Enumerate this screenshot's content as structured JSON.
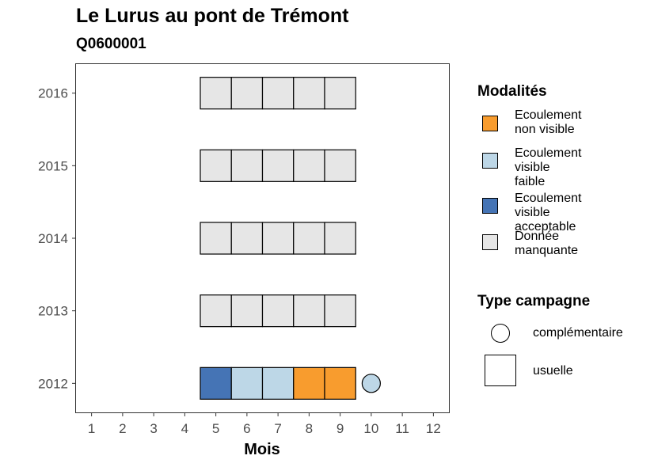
{
  "chart_data": {
    "type": "heatmap",
    "title": "Le Lurus au pont de Trémont",
    "subtitle": "Q0600001",
    "xlabel": "Mois",
    "ylabel": "",
    "x_ticks": [
      "1",
      "2",
      "3",
      "4",
      "5",
      "6",
      "7",
      "8",
      "9",
      "10",
      "11",
      "12"
    ],
    "y_ticks": [
      "2016",
      "2015",
      "2014",
      "2013",
      "2012"
    ],
    "xlim": [
      0.5,
      12.5
    ],
    "ylim": [
      2011.6,
      2016.4
    ],
    "grid": false,
    "legend_position": "right",
    "colors": {
      "Ecoulement non visible": "#F89C2E",
      "Ecoulement visible faible": "#BDD7E7",
      "Ecoulement visible acceptable": "#4574B5",
      "Donnée manquante": "#E6E6E6"
    },
    "points": [
      {
        "year": 2016,
        "month": 5,
        "modalite": "Donnée manquante",
        "campagne": "usuelle"
      },
      {
        "year": 2016,
        "month": 6,
        "modalite": "Donnée manquante",
        "campagne": "usuelle"
      },
      {
        "year": 2016,
        "month": 7,
        "modalite": "Donnée manquante",
        "campagne": "usuelle"
      },
      {
        "year": 2016,
        "month": 8,
        "modalite": "Donnée manquante",
        "campagne": "usuelle"
      },
      {
        "year": 2016,
        "month": 9,
        "modalite": "Donnée manquante",
        "campagne": "usuelle"
      },
      {
        "year": 2015,
        "month": 5,
        "modalite": "Donnée manquante",
        "campagne": "usuelle"
      },
      {
        "year": 2015,
        "month": 6,
        "modalite": "Donnée manquante",
        "campagne": "usuelle"
      },
      {
        "year": 2015,
        "month": 7,
        "modalite": "Donnée manquante",
        "campagne": "usuelle"
      },
      {
        "year": 2015,
        "month": 8,
        "modalite": "Donnée manquante",
        "campagne": "usuelle"
      },
      {
        "year": 2015,
        "month": 9,
        "modalite": "Donnée manquante",
        "campagne": "usuelle"
      },
      {
        "year": 2014,
        "month": 5,
        "modalite": "Donnée manquante",
        "campagne": "usuelle"
      },
      {
        "year": 2014,
        "month": 6,
        "modalite": "Donnée manquante",
        "campagne": "usuelle"
      },
      {
        "year": 2014,
        "month": 7,
        "modalite": "Donnée manquante",
        "campagne": "usuelle"
      },
      {
        "year": 2014,
        "month": 8,
        "modalite": "Donnée manquante",
        "campagne": "usuelle"
      },
      {
        "year": 2014,
        "month": 9,
        "modalite": "Donnée manquante",
        "campagne": "usuelle"
      },
      {
        "year": 2013,
        "month": 5,
        "modalite": "Donnée manquante",
        "campagne": "usuelle"
      },
      {
        "year": 2013,
        "month": 6,
        "modalite": "Donnée manquante",
        "campagne": "usuelle"
      },
      {
        "year": 2013,
        "month": 7,
        "modalite": "Donnée manquante",
        "campagne": "usuelle"
      },
      {
        "year": 2013,
        "month": 8,
        "modalite": "Donnée manquante",
        "campagne": "usuelle"
      },
      {
        "year": 2013,
        "month": 9,
        "modalite": "Donnée manquante",
        "campagne": "usuelle"
      },
      {
        "year": 2012,
        "month": 5,
        "modalite": "Ecoulement visible acceptable",
        "campagne": "usuelle"
      },
      {
        "year": 2012,
        "month": 6,
        "modalite": "Ecoulement visible faible",
        "campagne": "usuelle"
      },
      {
        "year": 2012,
        "month": 7,
        "modalite": "Ecoulement visible faible",
        "campagne": "usuelle"
      },
      {
        "year": 2012,
        "month": 8,
        "modalite": "Ecoulement non visible",
        "campagne": "usuelle"
      },
      {
        "year": 2012,
        "month": 9,
        "modalite": "Ecoulement non visible",
        "campagne": "usuelle"
      },
      {
        "year": 2012,
        "month": 10,
        "modalite": "Ecoulement visible faible",
        "campagne": "complémentaire"
      }
    ],
    "legend_modalites": {
      "title": "Modalités",
      "items": [
        {
          "lines": [
            "Ecoulement",
            "non visible"
          ],
          "color": "#F89C2E"
        },
        {
          "lines": [
            "Ecoulement",
            "visible",
            "faible"
          ],
          "color": "#BDD7E7"
        },
        {
          "lines": [
            "Ecoulement",
            "visible",
            "acceptable"
          ],
          "color": "#4574B5"
        },
        {
          "lines": [
            "Donnée",
            "manquante"
          ],
          "color": "#E6E6E6"
        }
      ]
    },
    "legend_campagne": {
      "title": "Type campagne",
      "items": [
        {
          "label": "complémentaire",
          "shape": "circle"
        },
        {
          "label": "usuelle",
          "shape": "square"
        }
      ]
    }
  }
}
